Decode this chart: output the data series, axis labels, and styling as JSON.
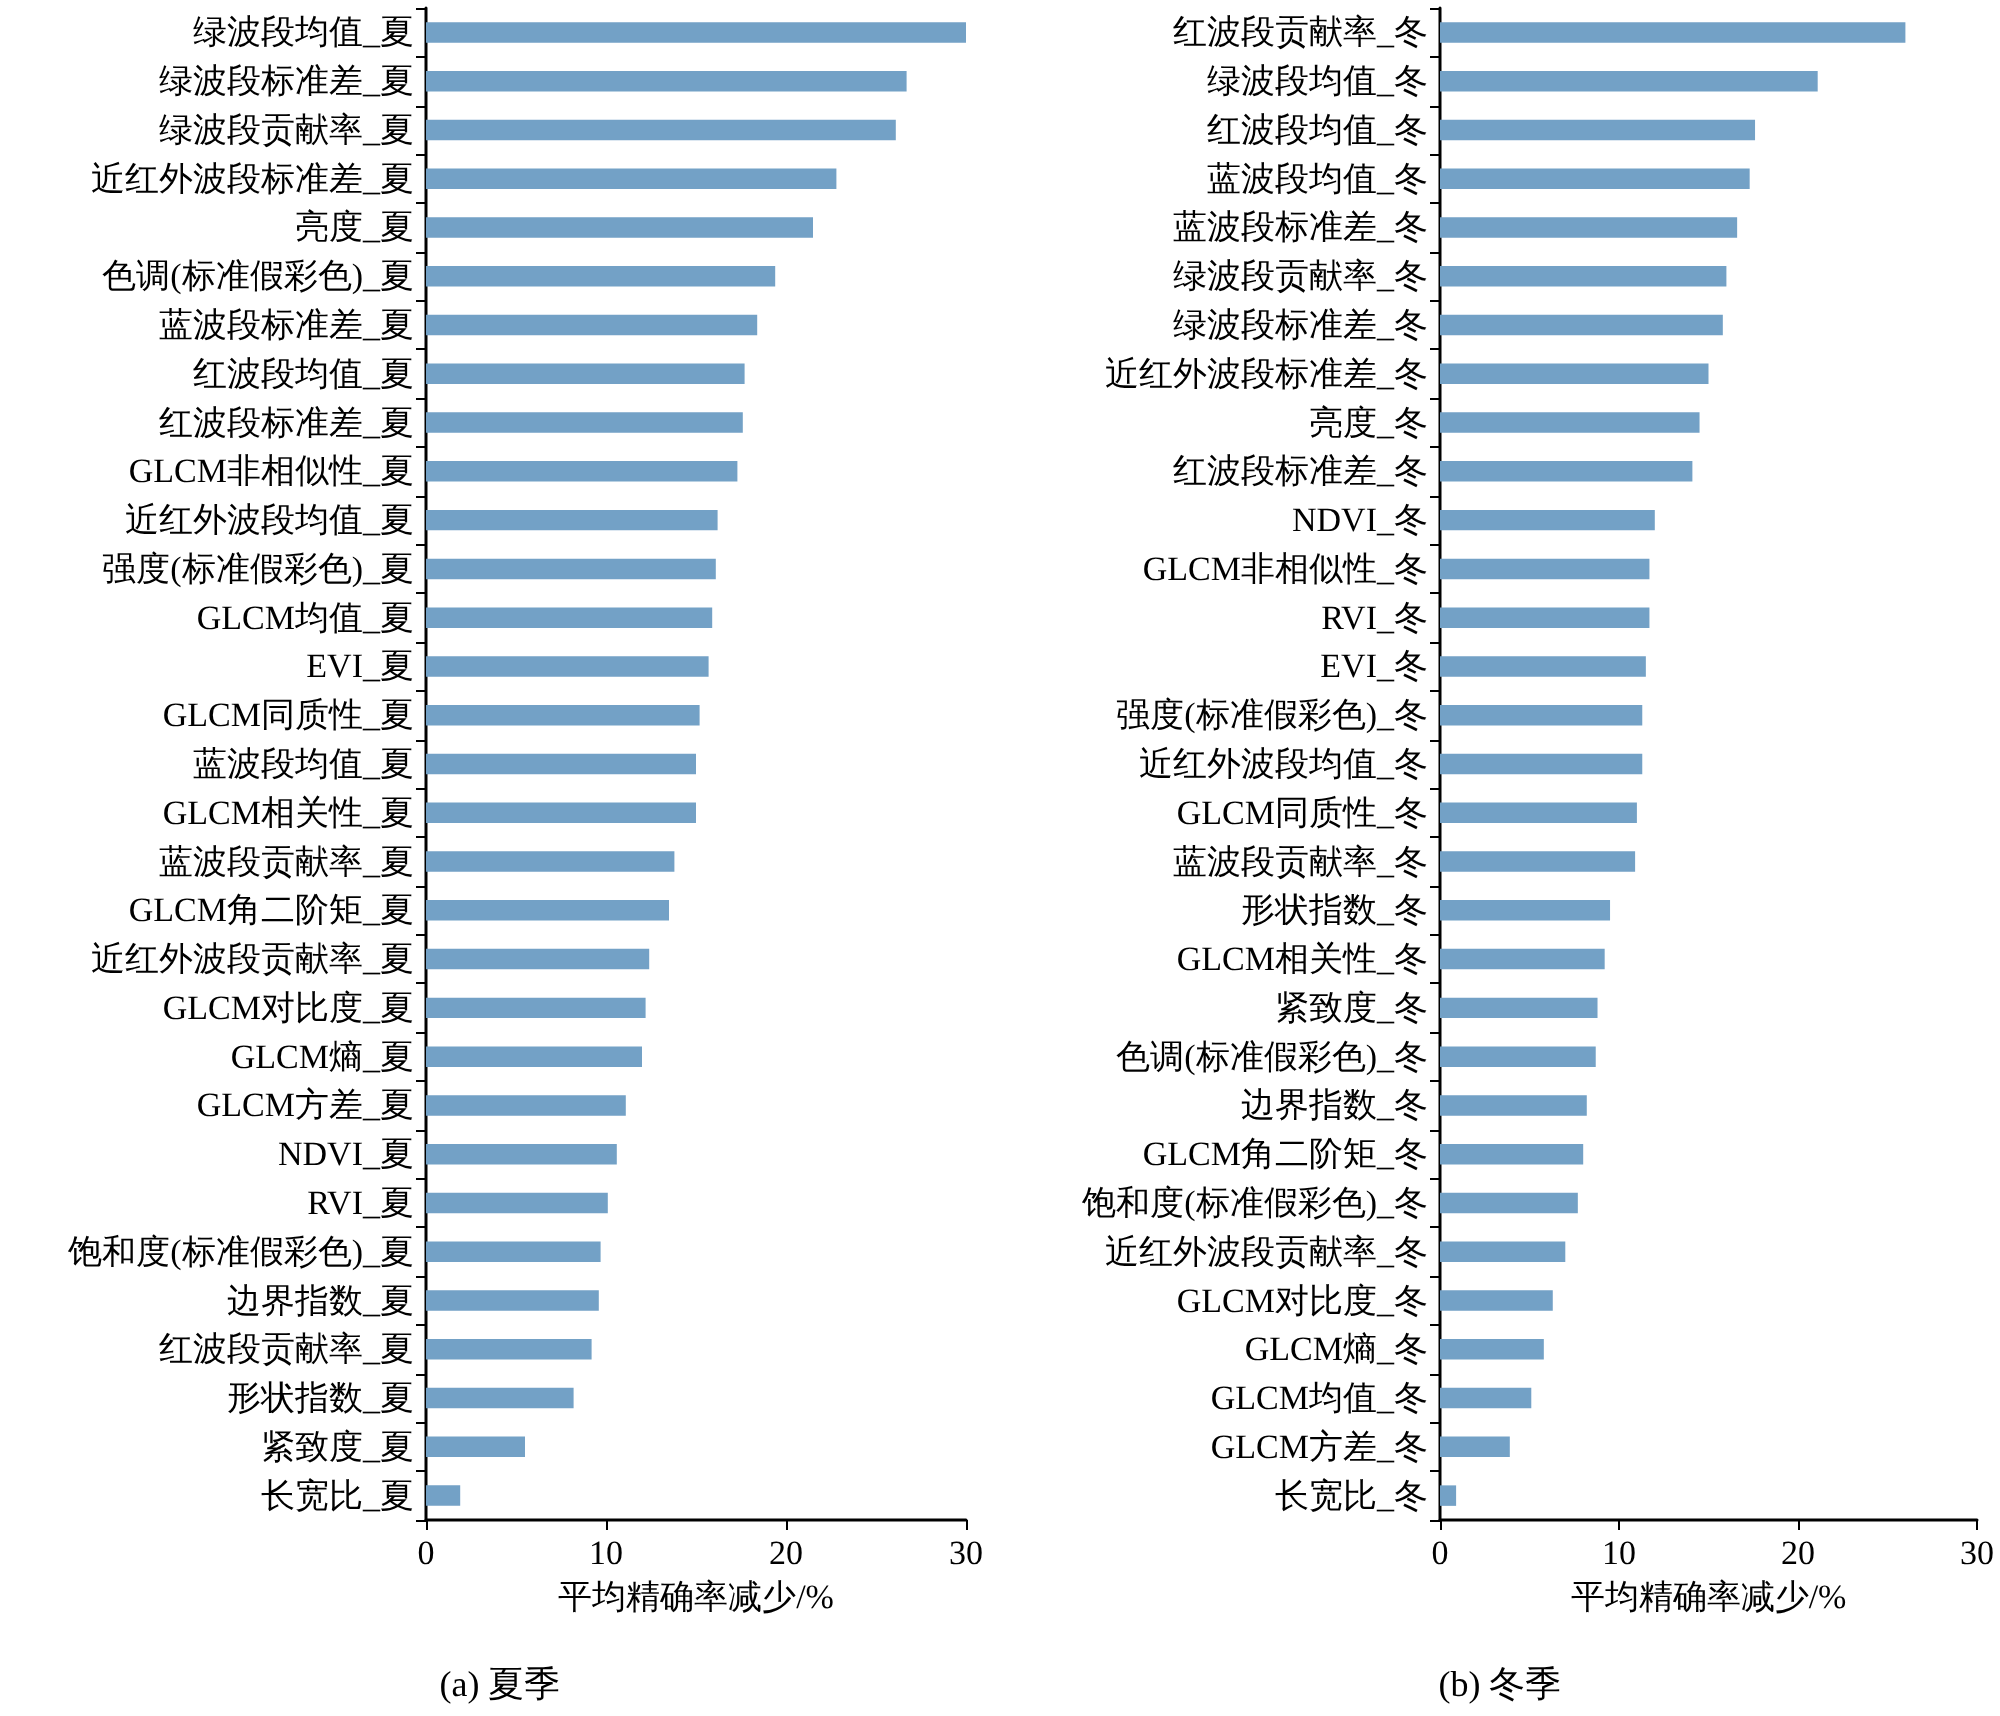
{
  "chart_data": [
    {
      "type": "bar",
      "orientation": "horizontal",
      "title": "(a) 夏季",
      "xlabel": "平均精确率减少/%",
      "categories": [
        "绿波段均值_夏",
        "绿波段标准差_夏",
        "绿波段贡献率_夏",
        "近红外波段标准差_夏",
        "亮度_夏",
        "色调(标准假彩色)_夏",
        "蓝波段标准差_夏",
        "红波段均值_夏",
        "红波段标准差_夏",
        "GLCM非相似性_夏",
        "近红外波段均值_夏",
        "强度(标准假彩色)_夏",
        "GLCM均值_夏",
        "EVI_夏",
        "GLCM同质性_夏",
        "蓝波段均值_夏",
        "GLCM相关性_夏",
        "蓝波段贡献率_夏",
        "GLCM角二阶矩_夏",
        "近红外波段贡献率_夏",
        "GLCM对比度_夏",
        "GLCM熵_夏",
        "GLCM方差_夏",
        "NDVI_夏",
        "RVI_夏",
        "饱和度(标准假彩色)_夏",
        "边界指数_夏",
        "红波段贡献率_夏",
        "形状指数_夏",
        "紧致度_夏",
        "长宽比_夏"
      ],
      "values": [
        30.0,
        26.7,
        26.1,
        22.8,
        21.5,
        19.4,
        18.4,
        17.7,
        17.6,
        17.3,
        16.2,
        16.1,
        15.9,
        15.7,
        15.2,
        15.0,
        15.0,
        13.8,
        13.5,
        12.4,
        12.2,
        12.0,
        11.1,
        10.6,
        10.1,
        9.7,
        9.6,
        9.2,
        8.2,
        5.5,
        1.9
      ],
      "color": "#73a1c6",
      "xlim": [
        0,
        30
      ],
      "xticks": [
        0,
        10,
        20,
        30
      ]
    },
    {
      "type": "bar",
      "orientation": "horizontal",
      "title": "(b) 冬季",
      "xlabel": "平均精确率减少/%",
      "categories": [
        "红波段贡献率_冬",
        "绿波段均值_冬",
        "红波段均值_冬",
        "蓝波段均值_冬",
        "蓝波段标准差_冬",
        "绿波段贡献率_冬",
        "绿波段标准差_冬",
        "近红外波段标准差_冬",
        "亮度_冬",
        "红波段标准差_冬",
        "NDVI_冬",
        "GLCM非相似性_冬",
        "RVI_冬",
        "EVI_冬",
        "强度(标准假彩色)_冬",
        "近红外波段均值_冬",
        "GLCM同质性_冬",
        "蓝波段贡献率_冬",
        "形状指数_冬",
        "GLCM相关性_冬",
        "紧致度_冬",
        "色调(标准假彩色)_冬",
        "边界指数_冬",
        "GLCM角二阶矩_冬",
        "饱和度(标准假彩色)_冬",
        "近红外波段贡献率_冬",
        "GLCM对比度_冬",
        "GLCM熵_冬",
        "GLCM均值_冬",
        "GLCM方差_冬",
        "长宽比_冬"
      ],
      "values": [
        26.0,
        21.1,
        17.6,
        17.3,
        16.6,
        16.0,
        15.8,
        15.0,
        14.5,
        14.1,
        12.0,
        11.7,
        11.7,
        11.5,
        11.3,
        11.3,
        11.0,
        10.9,
        9.5,
        9.2,
        8.8,
        8.7,
        8.2,
        8.0,
        7.7,
        7.0,
        6.3,
        5.8,
        5.1,
        3.9,
        0.9
      ],
      "color": "#73a1c6",
      "xlim": [
        0,
        30
      ],
      "xticks": [
        0,
        10,
        20,
        30
      ]
    }
  ]
}
